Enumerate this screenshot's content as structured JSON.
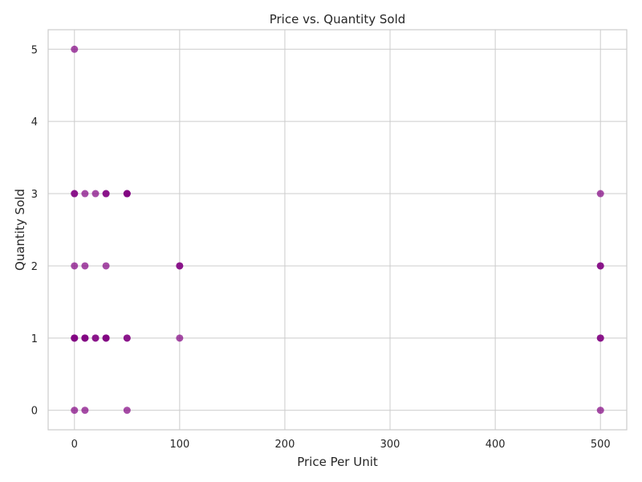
{
  "chart_data": {
    "type": "scatter",
    "title": "Price vs. Quantity Sold",
    "xlabel": "Price Per Unit",
    "ylabel": "Quantity Sold",
    "xlim": [
      -25,
      525
    ],
    "ylim": [
      -0.27,
      5.27
    ],
    "x_ticks": [
      0,
      100,
      200,
      300,
      400,
      500
    ],
    "y_ticks": [
      0,
      1,
      2,
      3,
      4,
      5
    ],
    "grid": true,
    "point_color": "#800080",
    "points": [
      {
        "x": 0,
        "y": 5
      },
      {
        "x": 0,
        "y": 3
      },
      {
        "x": 0,
        "y": 3
      },
      {
        "x": 10,
        "y": 3
      },
      {
        "x": 20,
        "y": 3
      },
      {
        "x": 30,
        "y": 3
      },
      {
        "x": 30,
        "y": 3
      },
      {
        "x": 50,
        "y": 3
      },
      {
        "x": 50,
        "y": 3
      },
      {
        "x": 50,
        "y": 3
      },
      {
        "x": 500,
        "y": 3
      },
      {
        "x": 0,
        "y": 2
      },
      {
        "x": 10,
        "y": 2
      },
      {
        "x": 30,
        "y": 2
      },
      {
        "x": 100,
        "y": 2
      },
      {
        "x": 100,
        "y": 2
      },
      {
        "x": 500,
        "y": 2
      },
      {
        "x": 500,
        "y": 2
      },
      {
        "x": 0,
        "y": 1
      },
      {
        "x": 0,
        "y": 1
      },
      {
        "x": 0,
        "y": 1
      },
      {
        "x": 10,
        "y": 1
      },
      {
        "x": 10,
        "y": 1
      },
      {
        "x": 10,
        "y": 1
      },
      {
        "x": 20,
        "y": 1
      },
      {
        "x": 20,
        "y": 1
      },
      {
        "x": 30,
        "y": 1
      },
      {
        "x": 30,
        "y": 1
      },
      {
        "x": 30,
        "y": 1
      },
      {
        "x": 50,
        "y": 1
      },
      {
        "x": 50,
        "y": 1
      },
      {
        "x": 100,
        "y": 1
      },
      {
        "x": 500,
        "y": 1
      },
      {
        "x": 500,
        "y": 1
      },
      {
        "x": 0,
        "y": 0
      },
      {
        "x": 10,
        "y": 0
      },
      {
        "x": 50,
        "y": 0
      },
      {
        "x": 500,
        "y": 0
      }
    ]
  }
}
